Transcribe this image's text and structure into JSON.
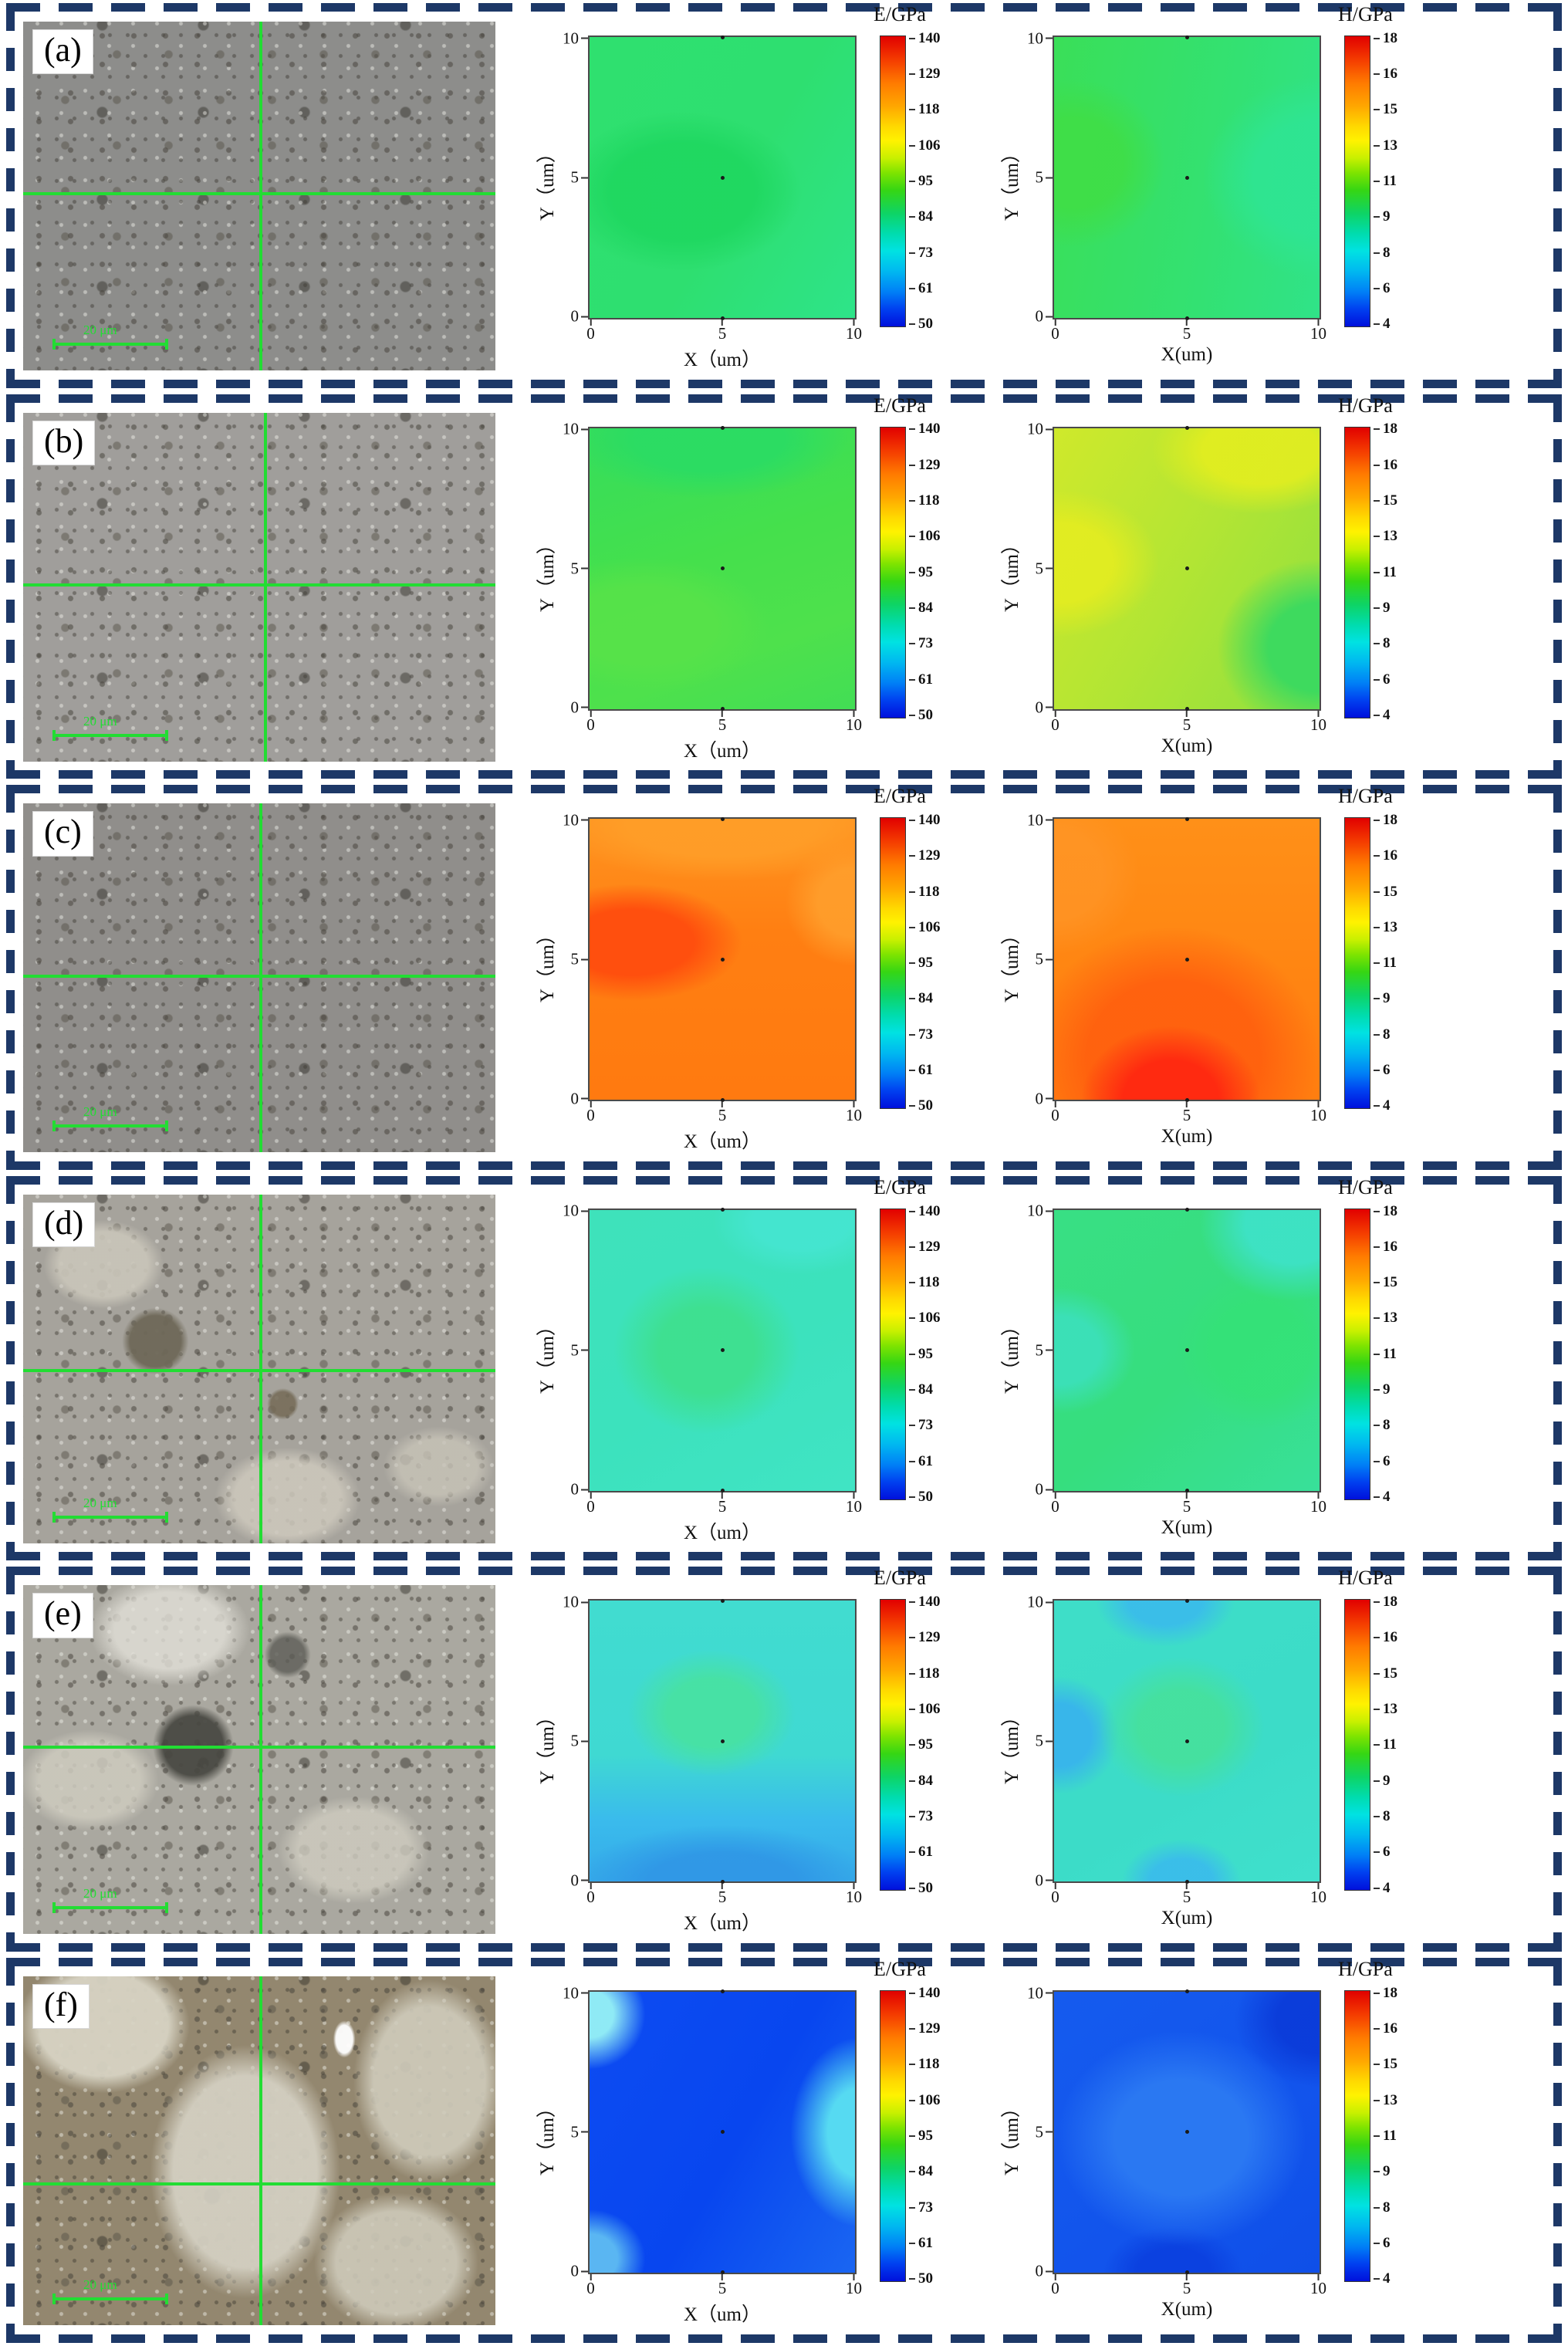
{
  "figure": {
    "description": "Six-row nanoindentation figure: optical micrograph with green crosshair plus E/GPa and H/GPa contour maps per row",
    "frame_color": "#1d3867",
    "crosshair_color": "#22dd33",
    "scalebar_color": "#22dd33"
  },
  "axes": {
    "y_label": "Y（um）",
    "x_label_e": "X（um）",
    "x_label_h": "X(um)",
    "x_ticks": [
      "0",
      "5",
      "10"
    ],
    "y_ticks": [
      "10",
      "5",
      "0"
    ]
  },
  "colorbars": {
    "e": {
      "title": "E/GPa",
      "ticks": [
        "140",
        "129",
        "118",
        "106",
        "95",
        "84",
        "73",
        "61",
        "50"
      ]
    },
    "h": {
      "title": "H/GPa",
      "ticks": [
        "18",
        "16",
        "15",
        "13",
        "11",
        "9",
        "8",
        "6",
        "4"
      ]
    }
  },
  "rows": [
    {
      "id": "a",
      "label": "(a)",
      "scale_bar": "20 μm",
      "crosshair": {
        "x": "50%",
        "y": "49%"
      }
    },
    {
      "id": "b",
      "label": "(b)",
      "scale_bar": "20 μm",
      "crosshair": {
        "x": "51%",
        "y": "49%"
      }
    },
    {
      "id": "c",
      "label": "(c)",
      "scale_bar": "20 μm",
      "crosshair": {
        "x": "50%",
        "y": "49%"
      }
    },
    {
      "id": "d",
      "label": "(d)",
      "scale_bar": "20 μm",
      "crosshair": {
        "x": "50%",
        "y": "50%"
      }
    },
    {
      "id": "e",
      "label": "(e)",
      "scale_bar": "20 μm",
      "crosshair": {
        "x": "50%",
        "y": "46%"
      }
    },
    {
      "id": "f",
      "label": "(f)",
      "scale_bar": "20 μm",
      "crosshair": {
        "x": "50%",
        "y": "59%"
      }
    }
  ],
  "chart_data": [
    {
      "panel": "a",
      "quantity": "E",
      "type": "heatmap",
      "title": "E/GPa",
      "xlabel": "X（um）",
      "ylabel": "Y（um）",
      "x_range": [
        0,
        10
      ],
      "y_range": [
        0,
        10
      ],
      "x_ticks": [
        0,
        5,
        10
      ],
      "y_ticks": [
        0,
        5,
        10
      ],
      "colorbar_range": [
        50,
        140
      ],
      "colorbar_ticks": [
        140,
        129,
        118,
        106,
        95,
        84,
        73,
        61,
        50
      ],
      "approx_min": 84,
      "approx_max": 97,
      "pattern": "nearly uniform green ~88-95 GPa, slightly lower toward top-left and bottom-right corners",
      "dominant_color": "#2ee06f"
    },
    {
      "panel": "a",
      "quantity": "H",
      "type": "heatmap",
      "title": "H/GPa",
      "xlabel": "X(um)",
      "ylabel": "Y（um）",
      "x_range": [
        0,
        10
      ],
      "y_range": [
        0,
        10
      ],
      "x_ticks": [
        0,
        5,
        10
      ],
      "y_ticks": [
        0,
        5,
        10
      ],
      "colorbar_range": [
        4,
        18
      ],
      "colorbar_ticks": [
        18,
        16,
        15,
        13,
        11,
        9,
        8,
        6,
        4
      ],
      "approx_min": 9.5,
      "approx_max": 11.5,
      "pattern": "uniform green ~10-11 GPa, slightly higher at left edge, slightly lower (teal) at right",
      "dominant_color": "#33e072"
    },
    {
      "panel": "b",
      "quantity": "E",
      "type": "heatmap",
      "title": "E/GPa",
      "xlabel": "X（um）",
      "ylabel": "Y（um）",
      "x_range": [
        0,
        10
      ],
      "y_range": [
        0,
        10
      ],
      "x_ticks": [
        0,
        5,
        10
      ],
      "y_ticks": [
        0,
        5,
        10
      ],
      "colorbar_range": [
        50,
        140
      ],
      "colorbar_ticks": [
        140,
        129,
        118,
        106,
        95,
        84,
        73,
        61,
        50
      ],
      "approx_min": 92,
      "approx_max": 102,
      "pattern": "bright green banded field ~95-100 GPa, slightly darker green along the top edge",
      "dominant_color": "#45e04c"
    },
    {
      "panel": "b",
      "quantity": "H",
      "type": "heatmap",
      "title": "H/GPa",
      "xlabel": "X(um)",
      "ylabel": "Y（um）",
      "x_range": [
        0,
        10
      ],
      "y_range": [
        0,
        10
      ],
      "x_ticks": [
        0,
        5,
        10
      ],
      "y_ticks": [
        0,
        5,
        10
      ],
      "colorbar_range": [
        4,
        18
      ],
      "colorbar_ticks": [
        18,
        16,
        15,
        13,
        11,
        9,
        8,
        6,
        4
      ],
      "approx_min": 12,
      "approx_max": 14.5,
      "pattern": "yellow-green field ~13-14.5 GPa, yellow maxima at left and top-right, green minimum ~12 at bottom-right",
      "dominant_color": "#b2e534"
    },
    {
      "panel": "c",
      "quantity": "E",
      "type": "heatmap",
      "title": "E/GPa",
      "xlabel": "X（um）",
      "ylabel": "Y（um）",
      "x_range": [
        0,
        10
      ],
      "y_range": [
        0,
        10
      ],
      "x_ticks": [
        0,
        5,
        10
      ],
      "y_ticks": [
        0,
        5,
        10
      ],
      "colorbar_range": [
        50,
        140
      ],
      "colorbar_ticks": [
        140,
        129,
        118,
        106,
        95,
        84,
        73,
        61,
        50
      ],
      "approx_min": 125,
      "approx_max": 137,
      "pattern": "orange field ~127-132 GPa with red-orange maximum ~137 at left-center (x≈1-3, y≈3-5)",
      "dominant_color": "#ff7f12"
    },
    {
      "panel": "c",
      "quantity": "H",
      "type": "heatmap",
      "title": "H/GPa",
      "xlabel": "X(um)",
      "ylabel": "Y（um）",
      "x_range": [
        0,
        10
      ],
      "y_range": [
        0,
        10
      ],
      "x_ticks": [
        0,
        5,
        10
      ],
      "y_ticks": [
        0,
        5,
        10
      ],
      "colorbar_range": [
        4,
        18
      ],
      "colorbar_ticks": [
        18,
        16,
        15,
        13,
        11,
        9,
        8,
        6,
        4
      ],
      "approx_min": 16,
      "approx_max": 18,
      "pattern": "orange field ~16-17 GPa with red maximum ~18 at bottom-center (x≈3-6, y≈0-2)",
      "dominant_color": "#ff8512"
    },
    {
      "panel": "d",
      "quantity": "E",
      "type": "heatmap",
      "title": "E/GPa",
      "xlabel": "X（um）",
      "ylabel": "Y（um）",
      "x_range": [
        0,
        10
      ],
      "y_range": [
        0,
        10
      ],
      "x_ticks": [
        0,
        5,
        10
      ],
      "y_ticks": [
        0,
        5,
        10
      ],
      "colorbar_range": [
        50,
        140
      ],
      "colorbar_ticks": [
        140,
        129,
        118,
        106,
        95,
        84,
        73,
        61,
        50
      ],
      "approx_min": 76,
      "approx_max": 86,
      "pattern": "turquoise field ~78-80 GPa with greener maximum ~85 near center (x≈4-5, y≈5)",
      "dominant_color": "#3ce2bd"
    },
    {
      "panel": "d",
      "quantity": "H",
      "type": "heatmap",
      "title": "H/GPa",
      "xlabel": "X(um)",
      "ylabel": "Y（um）",
      "x_range": [
        0,
        10
      ],
      "y_range": [
        0,
        10
      ],
      "x_ticks": [
        0,
        5,
        10
      ],
      "y_ticks": [
        0,
        5,
        10
      ],
      "colorbar_range": [
        4,
        18
      ],
      "colorbar_ticks": [
        18,
        16,
        15,
        13,
        11,
        9,
        8,
        6,
        4
      ],
      "approx_min": 8.5,
      "approx_max": 10.5,
      "pattern": "green field ~9.5-10 GPa, teal minima at top-right corner and left-center blob",
      "dominant_color": "#36de7e"
    },
    {
      "panel": "e",
      "quantity": "E",
      "type": "heatmap",
      "title": "E/GPa",
      "xlabel": "X（um）",
      "ylabel": "Y（um）",
      "x_range": [
        0,
        10
      ],
      "y_range": [
        0,
        10
      ],
      "x_ticks": [
        0,
        5,
        10
      ],
      "y_ticks": [
        0,
        5,
        10
      ],
      "colorbar_range": [
        50,
        140
      ],
      "colorbar_ticks": [
        140,
        129,
        118,
        106,
        95,
        84,
        73,
        61,
        50
      ],
      "approx_min": 62,
      "approx_max": 84,
      "pattern": "cyan upper field ~75-78 GPa with green center blob ~84, blue banded minimum ~62-68 along the bottom",
      "dominant_color": "#3fd9d2"
    },
    {
      "panel": "e",
      "quantity": "H",
      "type": "heatmap",
      "title": "H/GPa",
      "xlabel": "X(um)",
      "ylabel": "Y（um）",
      "x_range": [
        0,
        10
      ],
      "y_range": [
        0,
        10
      ],
      "x_ticks": [
        0,
        5,
        10
      ],
      "y_ticks": [
        0,
        5,
        10
      ],
      "colorbar_range": [
        4,
        18
      ],
      "colorbar_ticks": [
        18,
        16,
        15,
        13,
        11,
        9,
        8,
        6,
        4
      ],
      "approx_min": 7,
      "approx_max": 9.5,
      "pattern": "cyan field ~8.5 GPa, green maximum ~9.5 at center, blue minima ~7 at left-center, top-center and bottom-center",
      "dominant_color": "#3cdcc8"
    },
    {
      "panel": "f",
      "quantity": "E",
      "type": "heatmap",
      "title": "E/GPa",
      "xlabel": "X（um）",
      "ylabel": "Y（um）",
      "x_range": [
        0,
        10
      ],
      "y_range": [
        0,
        10
      ],
      "x_ticks": [
        0,
        5,
        10
      ],
      "y_ticks": [
        0,
        5,
        10
      ],
      "colorbar_range": [
        50,
        140
      ],
      "colorbar_ticks": [
        140,
        129,
        118,
        106,
        95,
        84,
        73,
        61,
        50
      ],
      "approx_min": 50,
      "approx_max": 76,
      "pattern": "deep blue field ~50-58 GPa with light-cyan maxima ~73-76 at top-left corner and right-center edge",
      "dominant_color": "#0846ef"
    },
    {
      "panel": "f",
      "quantity": "H",
      "type": "heatmap",
      "title": "H/GPa",
      "xlabel": "X(um)",
      "ylabel": "Y（um）",
      "x_range": [
        0,
        10
      ],
      "y_range": [
        0,
        10
      ],
      "x_ticks": [
        0,
        5,
        10
      ],
      "y_ticks": [
        0,
        5,
        10
      ],
      "colorbar_range": [
        4,
        18
      ],
      "colorbar_ticks": [
        18,
        16,
        15,
        13,
        11,
        9,
        8,
        6,
        4
      ],
      "approx_min": 4,
      "approx_max": 6,
      "pattern": "blue field ~4-5 GPa with slightly lighter diagonal band ~5.5-6 through the center, darkest at top-right",
      "dominant_color": "#1254ec"
    }
  ]
}
